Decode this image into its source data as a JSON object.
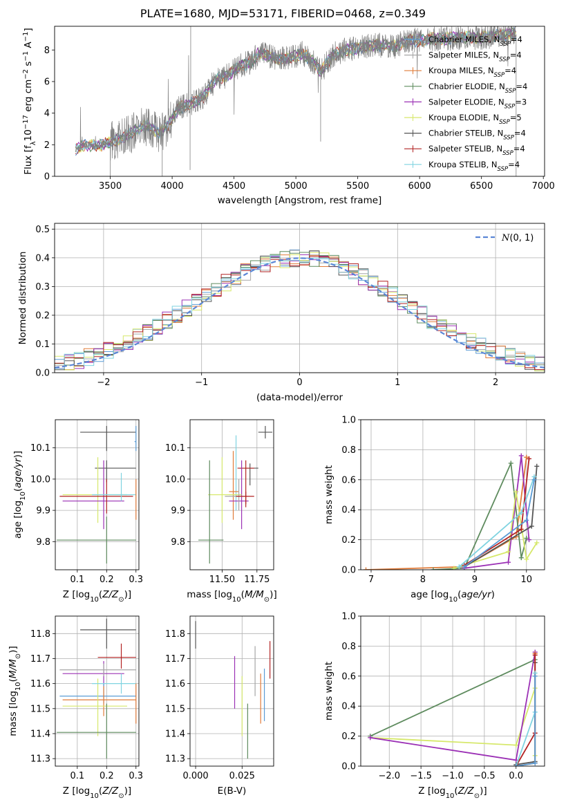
{
  "title": "PLATE=1680, MJD=53171, FIBERID=0468, z=0.349",
  "colors": {
    "Chabrier MILES": "#5a9bd5",
    "Salpeter MILES": "#a6a6a6",
    "Kroupa MILES": "#e07b39",
    "Chabrier ELODIE": "#5e8b5e",
    "Salpeter ELODIE": "#9b30b5",
    "Kroupa ELODIE": "#d6e86a",
    "Chabrier STELIB": "#555555",
    "Salpeter STELIB": "#b22222",
    "Kroupa STELIB": "#7fd3e0",
    "data": "#808080",
    "normal": "#5b86d6"
  },
  "legend_models": [
    {
      "key": "Chabrier MILES",
      "label": "Chabrier MILES, N",
      "nssp": "=4"
    },
    {
      "key": "Salpeter MILES",
      "label": "Salpeter MILES, N",
      "nssp": "=4"
    },
    {
      "key": "Kroupa MILES",
      "label": "Kroupa MILES, N",
      "nssp": "=4"
    },
    {
      "key": "Chabrier ELODIE",
      "label": "Chabrier ELODIE, N",
      "nssp": "=4"
    },
    {
      "key": "Salpeter ELODIE",
      "label": "Salpeter ELODIE, N",
      "nssp": "=3"
    },
    {
      "key": "Kroupa ELODIE",
      "label": "Kroupa ELODIE, N",
      "nssp": "=5"
    },
    {
      "key": "Chabrier STELIB",
      "label": "Chabrier STELIB, N",
      "nssp": "=4"
    },
    {
      "key": "Salpeter STELIB",
      "label": "Salpeter STELIB, N",
      "nssp": "=4"
    },
    {
      "key": "Kroupa STELIB",
      "label": "Kroupa STELIB, N",
      "nssp": "=4"
    }
  ],
  "chart_data": [
    {
      "id": "spectrum",
      "type": "line",
      "xlabel": "wavelength [Angstrom, rest frame]",
      "ylabel": "Flux [f",
      "xlim": [
        3050,
        7010
      ],
      "ylim": [
        0,
        9.5
      ],
      "xticks": [
        3500,
        4000,
        4500,
        5000,
        5500,
        6000,
        6500,
        7000
      ],
      "yticks": [
        0,
        2,
        4,
        6,
        8
      ],
      "x_range_data": [
        3220,
        6780
      ],
      "continuum": [
        [
          3220,
          1.7
        ],
        [
          3300,
          2.0
        ],
        [
          3400,
          1.9
        ],
        [
          3480,
          2.1
        ],
        [
          3550,
          2.3
        ],
        [
          3650,
          2.6
        ],
        [
          3700,
          2.9
        ],
        [
          3800,
          3.2
        ],
        [
          3900,
          2.7
        ],
        [
          3970,
          3.3
        ],
        [
          4050,
          4.3
        ],
        [
          4150,
          4.6
        ],
        [
          4250,
          5.0
        ],
        [
          4350,
          6.1
        ],
        [
          4450,
          6.4
        ],
        [
          4550,
          7.0
        ],
        [
          4650,
          7.3
        ],
        [
          4700,
          7.8
        ],
        [
          4800,
          7.6
        ],
        [
          4860,
          7.4
        ],
        [
          4950,
          7.5
        ],
        [
          5050,
          7.8
        ],
        [
          5150,
          7.2
        ],
        [
          5200,
          6.6
        ],
        [
          5300,
          7.7
        ],
        [
          5400,
          8.0
        ],
        [
          5500,
          8.1
        ],
        [
          5600,
          8.3
        ],
        [
          5700,
          8.3
        ],
        [
          5800,
          8.2
        ],
        [
          5900,
          8.6
        ],
        [
          6000,
          8.6
        ],
        [
          6100,
          8.7
        ],
        [
          6200,
          8.7
        ],
        [
          6300,
          8.8
        ],
        [
          6400,
          8.8
        ],
        [
          6500,
          8.8
        ],
        [
          6600,
          8.9
        ],
        [
          6700,
          9.0
        ],
        [
          6780,
          9.0
        ]
      ]
    },
    {
      "id": "residuals",
      "type": "line",
      "xlabel": "(data-model)/error",
      "ylabel": "Normed distribution",
      "xlim": [
        -2.5,
        2.5
      ],
      "ylim": [
        0,
        0.52
      ],
      "xticks": [
        -2,
        -1,
        0,
        1,
        2
      ],
      "yticks": [
        0.0,
        0.1,
        0.2,
        0.3,
        0.4,
        0.5
      ],
      "normal_label": "N(0, 1)",
      "bin_width": 0.1
    },
    {
      "id": "age_vs_Z",
      "type": "scatter",
      "xlabel": "Z [log",
      "ylabel": "age  [log",
      "xlim": [
        0.025,
        0.31
      ],
      "ylim": [
        9.71,
        10.19
      ],
      "xticks": [
        0.1,
        0.2,
        0.3
      ],
      "yticks": [
        9.8,
        9.9,
        10.0,
        10.1
      ],
      "points": [
        {
          "m": "Chabrier STELIB",
          "x": 0.2,
          "xlo": 0.11,
          "xhi": 0.3,
          "y": 10.15,
          "ylo": 10.09,
          "yhi": 10.17
        },
        {
          "m": "Chabrier STELIB",
          "x": 0.2,
          "xlo": 0.16,
          "xhi": 0.3,
          "y": 10.035,
          "ylo": 9.99,
          "yhi": 10.06
        },
        {
          "m": "Kroupa ELODIE",
          "x": 0.17,
          "xlo": 0.05,
          "xhi": 0.27,
          "y": 9.95,
          "ylo": 9.86,
          "yhi": 10.07
        },
        {
          "m": "Salpeter ELODIE",
          "x": 0.19,
          "xlo": 0.05,
          "xhi": 0.26,
          "y": 9.93,
          "ylo": 9.84,
          "yhi": 10.06
        },
        {
          "m": "Salpeter STELIB",
          "x": 0.2,
          "xlo": 0.04,
          "xhi": 0.29,
          "y": 9.945,
          "ylo": 9.89,
          "yhi": 10.0
        },
        {
          "m": "Kroupa STELIB",
          "x": 0.25,
          "xlo": 0.15,
          "xhi": 0.3,
          "y": 9.95,
          "ylo": 9.93,
          "yhi": 10.02
        },
        {
          "m": "Chabrier ELODIE",
          "x": 0.2,
          "xlo": 0.03,
          "xhi": 0.3,
          "y": 9.805,
          "ylo": 9.73,
          "yhi": 9.88
        },
        {
          "m": "Kroupa MILES",
          "x": 0.3,
          "xlo": 0.3,
          "xhi": 0.3,
          "y": 9.94,
          "ylo": 9.87,
          "yhi": 10.0
        },
        {
          "m": "Chabrier MILES",
          "x": 0.3,
          "xlo": 0.295,
          "xhi": 0.3,
          "y": 10.12,
          "ylo": 10.09,
          "yhi": 10.17
        }
      ]
    },
    {
      "id": "age_vs_mass",
      "type": "scatter",
      "xlabel": "mass [log",
      "ylabel": "",
      "xlim": [
        11.27,
        11.87
      ],
      "ylim": [
        9.71,
        10.19
      ],
      "xticks": [
        11.5,
        11.75
      ],
      "yticks": [
        9.8,
        9.9,
        10.0,
        10.1
      ],
      "points": [
        {
          "m": "Chabrier STELIB",
          "x": 11.81,
          "xlo": 11.76,
          "xhi": 11.86,
          "y": 10.15,
          "ylo": 10.13,
          "yhi": 10.17
        },
        {
          "m": "Chabrier STELIB",
          "x": 11.7,
          "xlo": 11.62,
          "xhi": 11.76,
          "y": 10.035,
          "ylo": 9.98,
          "yhi": 10.05
        },
        {
          "m": "Salpeter STELIB",
          "x": 11.67,
          "xlo": 11.61,
          "xhi": 11.73,
          "y": 10.035,
          "ylo": 9.91,
          "yhi": 10.06
        },
        {
          "m": "Kroupa STELIB",
          "x": 11.6,
          "xlo": 11.55,
          "xhi": 11.64,
          "y": 9.95,
          "ylo": 9.9,
          "yhi": 10.14
        },
        {
          "m": "Kroupa MILES",
          "x": 11.58,
          "xlo": 11.55,
          "xhi": 11.62,
          "y": 9.96,
          "ylo": 9.87,
          "yhi": 10.09
        },
        {
          "m": "Salpeter ELODIE",
          "x": 11.64,
          "xlo": 11.55,
          "xhi": 11.69,
          "y": 9.93,
          "ylo": 9.84,
          "yhi": 10.06
        },
        {
          "m": "Kroupa ELODIE",
          "x": 11.5,
          "xlo": 11.4,
          "xhi": 11.64,
          "y": 9.95,
          "ylo": 9.86,
          "yhi": 10.07
        },
        {
          "m": "Salpeter MILES",
          "x": 11.62,
          "xlo": 11.52,
          "xhi": 11.68,
          "y": 9.945,
          "ylo": 9.9,
          "yhi": 10.0
        },
        {
          "m": "Chabrier ELODIE",
          "x": 11.41,
          "xlo": 11.33,
          "xhi": 11.51,
          "y": 9.805,
          "ylo": 9.73,
          "yhi": 10.06
        },
        {
          "m": "Salpeter STELIB",
          "x": 11.67,
          "xlo": 11.6,
          "xhi": 11.73,
          "y": 9.945,
          "ylo": 9.92,
          "yhi": 9.96
        }
      ]
    },
    {
      "id": "weight_vs_age",
      "type": "line",
      "xlabel": "age  [log",
      "ylabel": "mass weight",
      "xlim": [
        6.8,
        10.35
      ],
      "ylim": [
        0,
        1.0
      ],
      "xticks": [
        7,
        8,
        9,
        10
      ],
      "yticks": [
        0.0,
        0.2,
        0.4,
        0.6,
        0.8,
        1.0
      ],
      "series": [
        {
          "m": "Kroupa MILES",
          "points": [
            [
              6.9,
              0.0
            ],
            [
              8.8,
              0.02
            ],
            [
              9.8,
              0.22
            ],
            [
              10.0,
              0.75
            ]
          ]
        },
        {
          "m": "Chabrier ELODIE",
          "points": [
            [
              8.2,
              0.0
            ],
            [
              8.8,
              0.01
            ],
            [
              9.7,
              0.71
            ],
            [
              9.9,
              0.08
            ],
            [
              10.0,
              0.21
            ]
          ]
        },
        {
          "m": "Salpeter ELODIE",
          "points": [
            [
              8.8,
              0.01
            ],
            [
              9.65,
              0.05
            ],
            [
              9.9,
              0.76
            ],
            [
              10.05,
              0.2
            ]
          ]
        },
        {
          "m": "Kroupa ELODIE",
          "points": [
            [
              8.6,
              0.01
            ],
            [
              9.65,
              0.12
            ],
            [
              9.8,
              0.52
            ],
            [
              10.0,
              0.07
            ],
            [
              10.2,
              0.18
            ]
          ]
        },
        {
          "m": "Chabrier STELIB",
          "points": [
            [
              8.8,
              0.02
            ],
            [
              10.1,
              0.29
            ],
            [
              10.2,
              0.69
            ]
          ]
        },
        {
          "m": "Salpeter STELIB",
          "points": [
            [
              8.8,
              0.03
            ],
            [
              9.9,
              0.27
            ],
            [
              10.05,
              0.74
            ]
          ]
        },
        {
          "m": "Kroupa STELIB",
          "points": [
            [
              8.7,
              0.02
            ],
            [
              9.9,
              0.38
            ],
            [
              10.15,
              0.62
            ]
          ]
        },
        {
          "m": "Chabrier MILES",
          "points": [
            [
              8.8,
              0.02
            ],
            [
              10.0,
              0.33
            ],
            [
              10.15,
              0.6
            ]
          ]
        }
      ]
    },
    {
      "id": "mass_vs_Z",
      "type": "scatter",
      "xlabel": "Z [log",
      "ylabel": "mass [log",
      "xlim": [
        0.025,
        0.31
      ],
      "ylim": [
        11.27,
        11.87
      ],
      "xticks": [
        0.1,
        0.2,
        0.3
      ],
      "yticks": [
        11.3,
        11.4,
        11.5,
        11.6,
        11.7,
        11.8
      ],
      "points": [
        {
          "m": "Chabrier STELIB",
          "x": 0.2,
          "xlo": 0.11,
          "xhi": 0.3,
          "y": 11.815,
          "ylo": 11.74,
          "yhi": 11.86
        },
        {
          "m": "Salpeter STELIB",
          "x": 0.25,
          "xlo": 0.17,
          "xhi": 0.3,
          "y": 11.705,
          "ylo": 11.66,
          "yhi": 11.76
        },
        {
          "m": "Salpeter ELODIE",
          "x": 0.19,
          "xlo": 0.05,
          "xhi": 0.26,
          "y": 11.64,
          "ylo": 11.59,
          "yhi": 11.69
        },
        {
          "m": "Salpeter MILES",
          "x": 0.19,
          "xlo": 0.04,
          "xhi": 0.3,
          "y": 11.655,
          "ylo": 11.63,
          "yhi": 11.68
        },
        {
          "m": "Chabrier MILES",
          "x": 0.19,
          "xlo": 0.04,
          "xhi": 0.3,
          "y": 11.55,
          "ylo": 11.52,
          "yhi": 11.6
        },
        {
          "m": "Kroupa MILES",
          "x": 0.19,
          "xlo": 0.05,
          "xhi": 0.3,
          "y": 11.535,
          "ylo": 11.47,
          "yhi": 11.59
        },
        {
          "m": "Kroupa ELODIE",
          "x": 0.17,
          "xlo": 0.05,
          "xhi": 0.27,
          "y": 11.51,
          "ylo": 11.39,
          "yhi": 11.62
        },
        {
          "m": "Kroupa STELIB",
          "x": 0.25,
          "xlo": 0.15,
          "xhi": 0.3,
          "y": 11.6,
          "ylo": 11.56,
          "yhi": 11.64
        },
        {
          "m": "Chabrier ELODIE",
          "x": 0.2,
          "xlo": 0.03,
          "xhi": 0.3,
          "y": 11.405,
          "ylo": 11.3,
          "yhi": 11.52
        },
        {
          "m": "Kroupa MILES",
          "x": 0.3,
          "xlo": 0.3,
          "xhi": 0.3,
          "y": 11.52,
          "ylo": 11.44,
          "yhi": 11.6
        }
      ]
    },
    {
      "id": "mass_vs_ebv",
      "type": "scatter",
      "xlabel": "E(B-V)",
      "ylabel": "",
      "xlim": [
        -0.003,
        0.042
      ],
      "ylim": [
        11.27,
        11.87
      ],
      "xticks": [
        0.0,
        0.025
      ],
      "yticks": [
        11.3,
        11.4,
        11.5,
        11.6,
        11.7,
        11.8
      ],
      "points": [
        {
          "m": "Chabrier STELIB",
          "x": 0.0,
          "ylo": 11.74,
          "yhi": 11.85
        },
        {
          "m": "Salpeter ELODIE",
          "x": 0.021,
          "ylo": 11.5,
          "yhi": 11.71
        },
        {
          "m": "Kroupa ELODIE",
          "x": 0.025,
          "ylo": 11.39,
          "yhi": 11.63
        },
        {
          "m": "Chabrier ELODIE",
          "x": 0.028,
          "ylo": 11.3,
          "yhi": 11.52
        },
        {
          "m": "Salpeter MILES",
          "x": 0.032,
          "ylo": 11.55,
          "yhi": 11.75
        },
        {
          "m": "Kroupa MILES",
          "x": 0.035,
          "ylo": 11.44,
          "yhi": 11.64
        },
        {
          "m": "Chabrier MILES",
          "x": 0.037,
          "ylo": 11.45,
          "yhi": 11.66
        },
        {
          "m": "Salpeter STELIB",
          "x": 0.04,
          "ylo": 11.62,
          "yhi": 11.77
        }
      ]
    },
    {
      "id": "weight_vs_Z",
      "type": "line",
      "xlabel": "Z [log",
      "ylabel": "mass weight",
      "xlim": [
        -2.45,
        0.45
      ],
      "ylim": [
        0,
        1.0
      ],
      "xticks": [
        -2.0,
        -1.5,
        -1.0,
        -0.5,
        0.0
      ],
      "yticks": [
        0.0,
        0.2,
        0.4,
        0.6,
        0.8,
        1.0
      ],
      "series": [
        {
          "m": "Chabrier ELODIE",
          "points": [
            [
              -2.3,
              0.2
            ],
            [
              0.3,
              0.71
            ]
          ]
        },
        {
          "m": "Kroupa ELODIE",
          "points": [
            [
              -2.3,
              0.19
            ],
            [
              0.0,
              0.14
            ],
            [
              0.3,
              0.52
            ],
            [
              0.3,
              0.07
            ]
          ]
        },
        {
          "m": "Salpeter ELODIE",
          "points": [
            [
              -2.3,
              0.19
            ],
            [
              0.0,
              0.04
            ],
            [
              0.3,
              0.76
            ]
          ]
        },
        {
          "m": "Kroupa MILES",
          "points": [
            [
              0.0,
              0.0
            ],
            [
              0.3,
              0.02
            ],
            [
              0.3,
              0.75
            ]
          ]
        },
        {
          "m": "Chabrier STELIB",
          "points": [
            [
              0.0,
              0.01
            ],
            [
              0.3,
              0.03
            ],
            [
              0.3,
              0.69
            ]
          ]
        },
        {
          "m": "Salpeter STELIB",
          "points": [
            [
              0.0,
              0.0
            ],
            [
              0.3,
              0.22
            ],
            [
              0.3,
              0.74
            ]
          ]
        },
        {
          "m": "Kroupa STELIB",
          "points": [
            [
              0.0,
              0.0
            ],
            [
              0.3,
              0.36
            ],
            [
              0.3,
              0.62
            ]
          ]
        },
        {
          "m": "Chabrier MILES",
          "points": [
            [
              0.0,
              0.0
            ],
            [
              0.3,
              0.02
            ],
            [
              0.3,
              0.6
            ]
          ]
        }
      ]
    }
  ]
}
